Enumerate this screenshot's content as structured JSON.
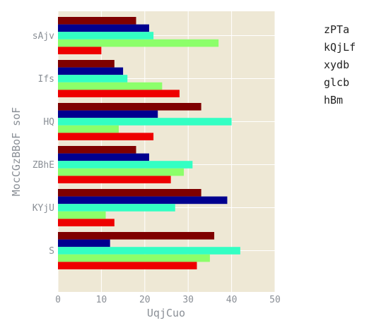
{
  "chart_data": {
    "type": "bar",
    "orientation": "horizontal",
    "categories": [
      "sAjv",
      "Ifs",
      "HQ",
      "ZBhE",
      "KYjU",
      "S"
    ],
    "xlabel": "UqjCuo",
    "ylabel": "MocCGzBBoF soF",
    "xlim": [
      0,
      50
    ],
    "xticks": [
      "0",
      "10",
      "20",
      "30",
      "40",
      "50"
    ],
    "grid": true,
    "legend_placement": "right",
    "series": [
      {
        "name": "zPTa",
        "color": "#7f0000",
        "values": [
          18,
          13,
          33,
          18,
          33,
          36
        ]
      },
      {
        "name": "kQjLf",
        "color": "#00008f",
        "values": [
          21,
          15,
          23,
          21,
          39,
          12
        ]
      },
      {
        "name": "xydb",
        "color": "#33ffc3",
        "values": [
          22,
          16,
          40,
          31,
          27,
          42
        ]
      },
      {
        "name": "glcb",
        "color": "#8cff6a",
        "values": [
          37,
          24,
          14,
          29,
          11,
          35
        ]
      },
      {
        "name": "hBm",
        "color": "#ee0000",
        "values": [
          10,
          28,
          22,
          26,
          13,
          32
        ]
      }
    ]
  }
}
